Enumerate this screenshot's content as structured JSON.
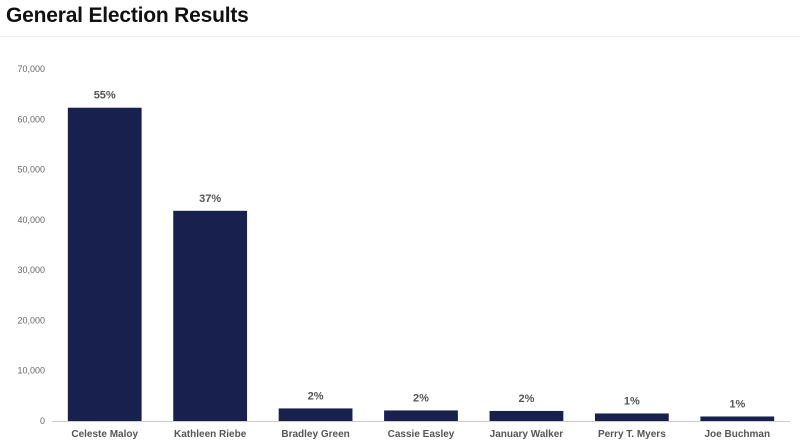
{
  "page": {
    "title": "General Election Results"
  },
  "colors": {
    "bar": "#18204d",
    "axis": "#cccccc",
    "grid": "#eeeeee"
  },
  "chart_data": {
    "type": "bar",
    "title": "General Election Results",
    "xlabel": "",
    "ylabel": "",
    "categories": [
      "Celeste Maloy",
      "Kathleen Riebe",
      "Bradley Green",
      "Cassie Easley",
      "January Walker",
      "Perry T. Myers",
      "Joe Buchman"
    ],
    "values": [
      62300,
      41800,
      2500,
      2100,
      2000,
      1500,
      900
    ],
    "data_labels": [
      "55%",
      "37%",
      "2%",
      "2%",
      "2%",
      "1%",
      "1%"
    ],
    "ylim": [
      0,
      70000
    ],
    "yticks": [
      0,
      10000,
      20000,
      30000,
      40000,
      50000,
      60000,
      70000
    ],
    "ytick_labels": [
      "0",
      "10,000",
      "20,000",
      "30,000",
      "40,000",
      "50,000",
      "60,000",
      "70,000"
    ],
    "grid": false,
    "legend": "none"
  }
}
